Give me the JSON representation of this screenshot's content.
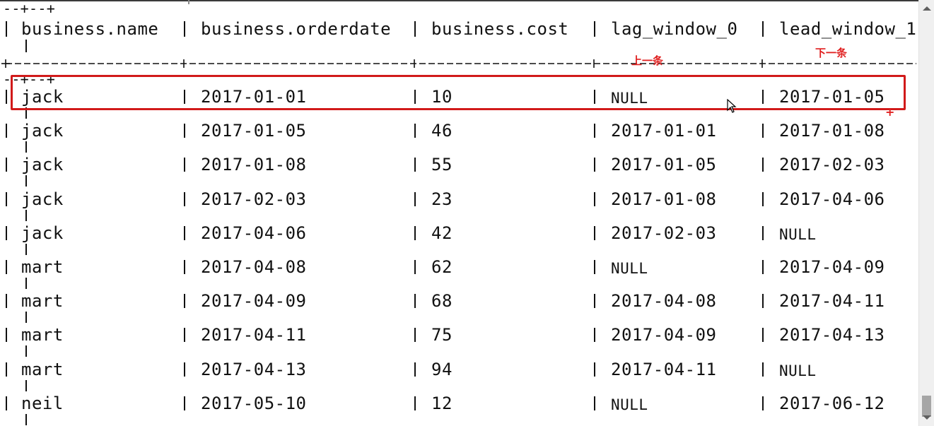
{
  "query_output": {
    "partial_border_top": "--+--+",
    "partial_border_repeat": "--+--+",
    "header": [
      "business.name",
      "business.orderdate",
      "business.cost",
      "lag_window_0",
      "lead_window_1"
    ],
    "rows": [
      [
        "jack",
        "2017-01-01",
        "10",
        "NULL",
        "2017-01-05"
      ],
      [
        "jack",
        "2017-01-05",
        "46",
        "2017-01-01",
        "2017-01-08"
      ],
      [
        "jack",
        "2017-01-08",
        "55",
        "2017-01-05",
        "2017-02-03"
      ],
      [
        "jack",
        "2017-02-03",
        "23",
        "2017-01-08",
        "2017-04-06"
      ],
      [
        "jack",
        "2017-04-06",
        "42",
        "2017-02-03",
        "NULL"
      ],
      [
        "mart",
        "2017-04-08",
        "62",
        "NULL",
        "2017-04-09"
      ],
      [
        "mart",
        "2017-04-09",
        "68",
        "2017-04-08",
        "2017-04-11"
      ],
      [
        "mart",
        "2017-04-11",
        "75",
        "2017-04-09",
        "2017-04-13"
      ],
      [
        "mart",
        "2017-04-13",
        "94",
        "2017-04-11",
        "NULL"
      ],
      [
        "neil",
        "2017-05-10",
        "12",
        "NULL",
        "2017-06-12"
      ]
    ]
  },
  "annotations": {
    "prev_label": "上一条",
    "next_label": "下一条",
    "plus_mark": "+",
    "highlight_color": "#d11a1a",
    "annotation_color": "#e02020"
  },
  "icons": {
    "cursor": "mouse-pointer-icon",
    "scroll_up": "chevron-up-icon",
    "scroll_down": "chevron-down-icon"
  }
}
